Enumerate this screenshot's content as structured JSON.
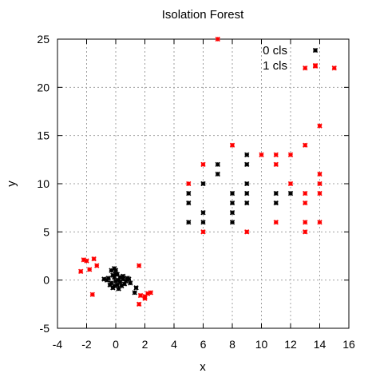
{
  "chart_data": {
    "type": "scatter",
    "title": "Isolation Forest",
    "xlabel": "x",
    "ylabel": "y",
    "xlim": [
      -4,
      16
    ],
    "ylim": [
      -5,
      25
    ],
    "xticks": [
      -4,
      -2,
      0,
      2,
      4,
      6,
      8,
      10,
      12,
      14,
      16
    ],
    "yticks": [
      -5,
      0,
      5,
      10,
      15,
      20,
      25
    ],
    "grid": true,
    "legend_position": "top-right",
    "series": [
      {
        "name": "0 cls",
        "color": "#000000",
        "points": [
          [
            -0.3,
            1.0
          ],
          [
            -0.1,
            1.2
          ],
          [
            0.0,
            1.0
          ],
          [
            -0.2,
            0.5
          ],
          [
            0.1,
            0.6
          ],
          [
            0.3,
            0.3
          ],
          [
            -0.5,
            0.2
          ],
          [
            -0.8,
            0.1
          ],
          [
            -0.6,
            0.0
          ],
          [
            0.0,
            -0.1
          ],
          [
            0.2,
            0.0
          ],
          [
            0.5,
            0.1
          ],
          [
            0.7,
            -0.1
          ],
          [
            -0.3,
            -0.3
          ],
          [
            0.1,
            -0.5
          ],
          [
            0.4,
            -0.6
          ],
          [
            0.2,
            -0.9
          ],
          [
            -0.2,
            -0.8
          ],
          [
            0.5,
            0.4
          ],
          [
            0.8,
            0.2
          ],
          [
            -0.1,
            0.3
          ],
          [
            0.3,
            -0.2
          ],
          [
            0.6,
            -0.4
          ],
          [
            -0.4,
            -0.5
          ],
          [
            1.3,
            -1.3
          ],
          [
            1.0,
            -0.3
          ],
          [
            1.4,
            -0.8
          ],
          [
            0.9,
            0.1
          ],
          [
            -0.1,
            -0.6
          ],
          [
            0.0,
            0.6
          ],
          [
            5,
            9
          ],
          [
            5,
            8
          ],
          [
            5,
            6
          ],
          [
            6,
            10
          ],
          [
            6,
            7
          ],
          [
            6,
            6
          ],
          [
            7,
            12
          ],
          [
            7,
            11
          ],
          [
            8,
            9
          ],
          [
            8,
            8
          ],
          [
            8,
            7
          ],
          [
            8,
            6
          ],
          [
            9,
            13
          ],
          [
            9,
            12
          ],
          [
            9,
            10
          ],
          [
            9,
            9
          ],
          [
            9,
            8
          ],
          [
            11,
            9
          ],
          [
            11,
            8
          ],
          [
            12,
            9
          ]
        ]
      },
      {
        "name": "1 cls",
        "color": "#ff0000",
        "points": [
          [
            -2.2,
            2.1
          ],
          [
            -2.0,
            2.0
          ],
          [
            -1.5,
            2.2
          ],
          [
            -1.3,
            1.5
          ],
          [
            -2.4,
            0.9
          ],
          [
            -1.8,
            1.1
          ],
          [
            -1.6,
            -1.5
          ],
          [
            1.6,
            1.5
          ],
          [
            1.7,
            -1.6
          ],
          [
            2.0,
            -1.7
          ],
          [
            2.2,
            -1.4
          ],
          [
            2.0,
            -1.9
          ],
          [
            2.4,
            -1.3
          ],
          [
            1.6,
            -2.5
          ],
          [
            7,
            25
          ],
          [
            5,
            10
          ],
          [
            6,
            12
          ],
          [
            6,
            5
          ],
          [
            8,
            14
          ],
          [
            9,
            5
          ],
          [
            10,
            13
          ],
          [
            11,
            13
          ],
          [
            11,
            12
          ],
          [
            11,
            6
          ],
          [
            12,
            13
          ],
          [
            12,
            10
          ],
          [
            13,
            22
          ],
          [
            13.7,
            22.2
          ],
          [
            15,
            22
          ],
          [
            14,
            16
          ],
          [
            13,
            14
          ],
          [
            14,
            11
          ],
          [
            14,
            10
          ],
          [
            14,
            9
          ],
          [
            13,
            9
          ],
          [
            13,
            8
          ],
          [
            13,
            6
          ],
          [
            13,
            5
          ],
          [
            14,
            6
          ]
        ]
      }
    ]
  }
}
